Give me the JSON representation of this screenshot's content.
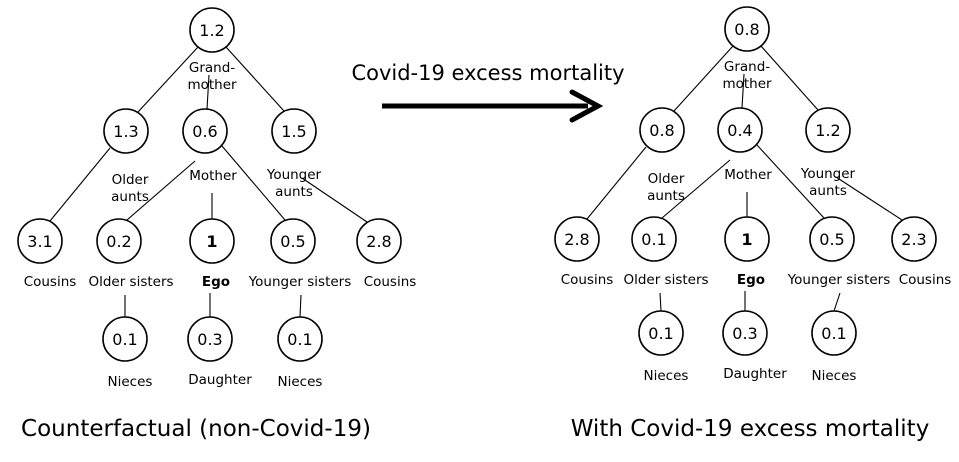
{
  "arrow_label": "Covid-19 excess mortality",
  "panels": [
    {
      "title": "Counterfactual (non-Covid-19)",
      "nodes": {
        "grandmother": {
          "value": "1.2",
          "label": [
            "Grand-",
            "mother"
          ]
        },
        "older_aunts": {
          "value": "1.3",
          "label": [
            "Older",
            "aunts"
          ]
        },
        "mother": {
          "value": "0.6",
          "label": [
            "Mother"
          ]
        },
        "younger_aunts": {
          "value": "1.5",
          "label": [
            "Younger",
            "aunts"
          ]
        },
        "cousins_left": {
          "value": "3.1",
          "label": [
            "Cousins"
          ]
        },
        "older_sisters": {
          "value": "0.2",
          "label": [
            "Older sisters"
          ]
        },
        "ego": {
          "value": "1",
          "label": [
            "Ego"
          ]
        },
        "younger_sisters": {
          "value": "0.5",
          "label": [
            "Younger sisters"
          ]
        },
        "cousins_right": {
          "value": "2.8",
          "label": [
            "Cousins"
          ]
        },
        "nieces_left": {
          "value": "0.1",
          "label": [
            "Nieces"
          ]
        },
        "daughter": {
          "value": "0.3",
          "label": [
            "Daughter"
          ]
        },
        "nieces_right": {
          "value": "0.1",
          "label": [
            "Nieces"
          ]
        }
      }
    },
    {
      "title": "With Covid-19 excess mortality",
      "nodes": {
        "grandmother": {
          "value": "0.8",
          "label": [
            "Grand-",
            "mother"
          ]
        },
        "older_aunts": {
          "value": "0.8",
          "label": [
            "Older",
            "aunts"
          ]
        },
        "mother": {
          "value": "0.4",
          "label": [
            "Mother"
          ]
        },
        "younger_aunts": {
          "value": "1.2",
          "label": [
            "Younger",
            "aunts"
          ]
        },
        "cousins_left": {
          "value": "2.8",
          "label": [
            "Cousins"
          ]
        },
        "older_sisters": {
          "value": "0.1",
          "label": [
            "Older sisters"
          ]
        },
        "ego": {
          "value": "1",
          "label": [
            "Ego"
          ]
        },
        "younger_sisters": {
          "value": "0.5",
          "label": [
            "Younger sisters"
          ]
        },
        "cousins_right": {
          "value": "2.3",
          "label": [
            "Cousins"
          ]
        },
        "nieces_left": {
          "value": "0.1",
          "label": [
            "Nieces"
          ]
        },
        "daughter": {
          "value": "0.3",
          "label": [
            "Daughter"
          ]
        },
        "nieces_right": {
          "value": "0.1",
          "label": [
            "Nieces"
          ]
        }
      }
    }
  ]
}
